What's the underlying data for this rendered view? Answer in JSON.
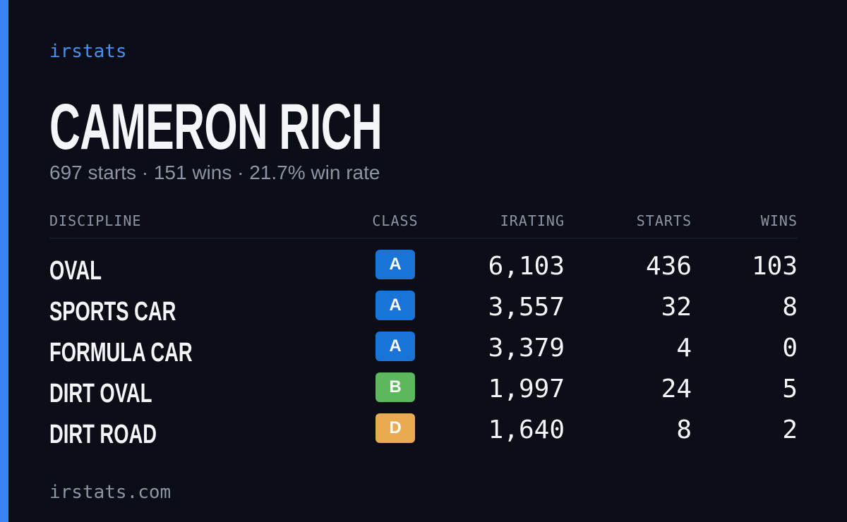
{
  "brand": "irstats",
  "name": "CAMERON RICH",
  "summary": "697 starts · 151 wins · 21.7% win rate",
  "table": {
    "headers": [
      "DISCIPLINE",
      "CLASS",
      "IRATING",
      "STARTS",
      "WINS"
    ],
    "rows": [
      [
        "OVAL",
        "A",
        "6,103",
        436,
        103
      ],
      [
        "SPORTS CAR",
        "A",
        "3,557",
        32,
        8
      ],
      [
        "FORMULA CAR",
        "A",
        "3,379",
        4,
        0
      ],
      [
        "DIRT OVAL",
        "B",
        "1,997",
        24,
        5
      ],
      [
        "DIRT ROAD",
        "D",
        "1,640",
        8,
        2
      ]
    ]
  },
  "class_colors": {
    "A": "#1a74d8",
    "B": "#5cb85c",
    "D": "#e9aa50"
  },
  "footer": "irstats.com"
}
